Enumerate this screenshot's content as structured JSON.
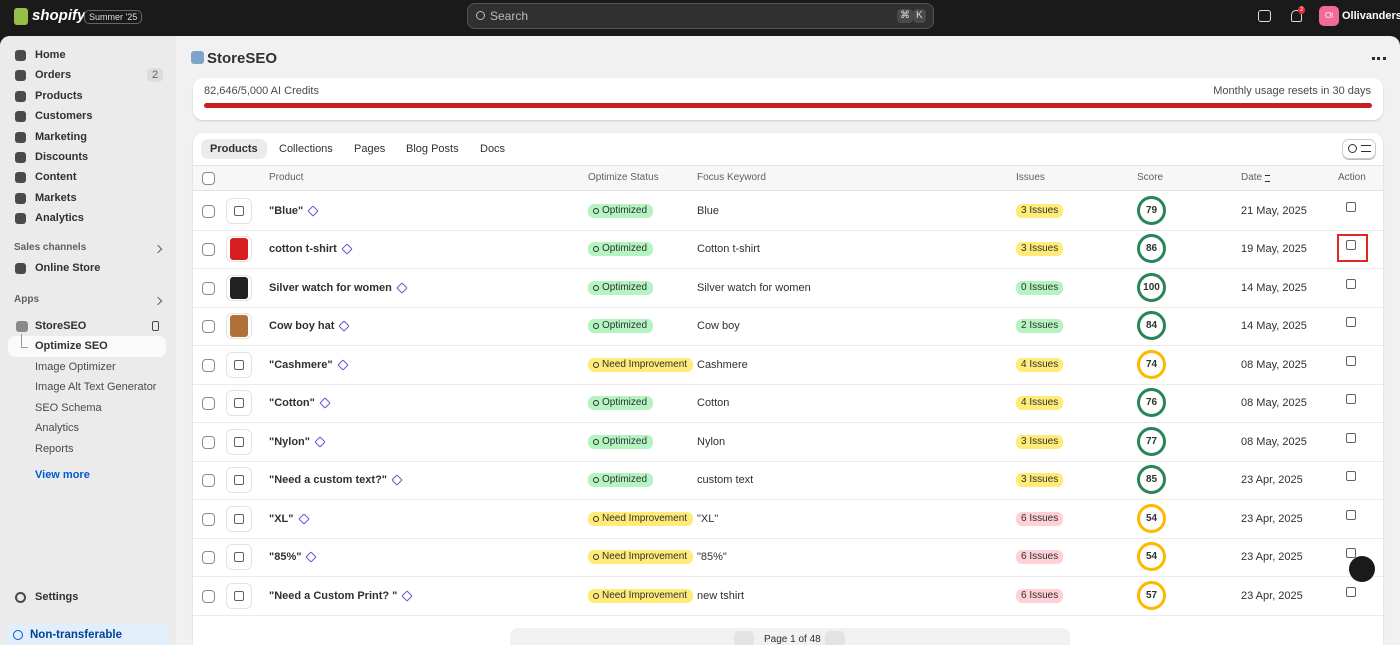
{
  "topbar": {
    "brand": "shopify",
    "edition": "Summer '25",
    "search": "Search",
    "shortcut": [
      "⌘",
      "K"
    ],
    "notifications": 2,
    "store_initials": "Ol",
    "store_name": "Ollivanders"
  },
  "sidebar": {
    "nav": [
      {
        "label": "Home"
      },
      {
        "label": "Orders",
        "badge": 2
      },
      {
        "label": "Products"
      },
      {
        "label": "Customers"
      },
      {
        "label": "Marketing"
      },
      {
        "label": "Discounts"
      },
      {
        "label": "Content"
      },
      {
        "label": "Markets"
      },
      {
        "label": "Analytics"
      }
    ],
    "sales_channels": {
      "title": "Sales channels",
      "items": [
        "Online Store"
      ]
    },
    "apps": {
      "title": "Apps"
    },
    "app": {
      "name": "StoreSEO",
      "items": [
        "Optimize SEO",
        "Image Optimizer",
        "Image Alt Text Generator",
        "SEO Schema",
        "Analytics",
        "Reports"
      ]
    },
    "view_more": "View more",
    "settings": "Settings",
    "footer": "Non-transferable"
  },
  "main": {
    "title": "StoreSEO",
    "credits": "82,646/5,000 AI Credits",
    "reset": "Monthly usage resets in 30 days",
    "tabs": [
      "Products",
      "Collections",
      "Pages",
      "Blog Posts",
      "Docs"
    ],
    "columns": [
      "Product",
      "Optimize Status",
      "Focus Keyword",
      "Issues",
      "Score",
      "Date",
      "Action"
    ],
    "rows": [
      {
        "product": "\"Blue\"",
        "image_color": null,
        "status": "Optimized",
        "status_color": "#b4f4c0",
        "keyword": "Blue",
        "issues": "3 Issues",
        "issues_color": "#ffeb78",
        "score": 79,
        "score_color": "#29845a",
        "date": "21 May, 2025"
      },
      {
        "product": "cotton t-shirt",
        "image_color": "#d81f1f",
        "status": "Optimized",
        "status_color": "#b4f4c0",
        "keyword": "Cotton t-shirt",
        "issues": "3 Issues",
        "issues_color": "#ffeb78",
        "score": 86,
        "score_color": "#29845a",
        "date": "19 May, 2025"
      },
      {
        "product": "Silver watch for women",
        "image_color": "#222222",
        "status": "Optimized",
        "status_color": "#b4f4c0",
        "keyword": "Silver watch for women",
        "issues": "0 Issues",
        "issues_color": "#b4f4c0",
        "score": 100,
        "score_color": "#29845a",
        "date": "14 May, 2025"
      },
      {
        "product": "Cow boy hat",
        "image_color": "#b0703a",
        "status": "Optimized",
        "status_color": "#b4f4c0",
        "keyword": "Cow boy",
        "issues": "2 Issues",
        "issues_color": "#b4f4c0",
        "score": 84,
        "score_color": "#29845a",
        "date": "14 May, 2025"
      },
      {
        "product": "\"Cashmere\"",
        "image_color": null,
        "status": "Need Improvement",
        "status_color": "#ffeb78",
        "keyword": "Cashmere",
        "issues": "4 Issues",
        "issues_color": "#ffeb78",
        "score": 74,
        "score_color": "#ffb800",
        "date": "08 May, 2025"
      },
      {
        "product": "\"Cotton\"",
        "image_color": null,
        "status": "Optimized",
        "status_color": "#b4f4c0",
        "keyword": "Cotton",
        "issues": "4 Issues",
        "issues_color": "#ffeb78",
        "score": 76,
        "score_color": "#29845a",
        "date": "08 May, 2025"
      },
      {
        "product": "\"Nylon\"",
        "image_color": null,
        "status": "Optimized",
        "status_color": "#b4f4c0",
        "keyword": "Nylon",
        "issues": "3 Issues",
        "issues_color": "#ffeb78",
        "score": 77,
        "score_color": "#29845a",
        "date": "08 May, 2025"
      },
      {
        "product": "\"Need a custom text?\"",
        "image_color": null,
        "status": "Optimized",
        "status_color": "#b4f4c0",
        "keyword": "custom text",
        "issues": "3 Issues",
        "issues_color": "#ffeb78",
        "score": 85,
        "score_color": "#29845a",
        "date": "23 Apr, 2025"
      },
      {
        "product": "\"XL\"",
        "image_color": null,
        "status": "Need Improvement",
        "status_color": "#ffeb78",
        "keyword": "\"XL\"",
        "issues": "6 Issues",
        "issues_color": "#fed1d7",
        "score": 54,
        "score_color": "#ffb800",
        "date": "23 Apr, 2025"
      },
      {
        "product": "\"85%\"",
        "image_color": null,
        "status": "Need Improvement",
        "status_color": "#ffeb78",
        "keyword": "\"85%\"",
        "issues": "6 Issues",
        "issues_color": "#fed1d7",
        "score": 54,
        "score_color": "#ffb800",
        "date": "23 Apr, 2025"
      },
      {
        "product": "\"Need a Custom Print? \"",
        "image_color": null,
        "status": "Need Improvement",
        "status_color": "#ffeb78",
        "keyword": "new tshirt",
        "issues": "6 Issues",
        "issues_color": "#fed1d7",
        "score": 57,
        "score_color": "#ffb800",
        "date": "23 Apr, 2025"
      }
    ],
    "pagination": "Page 1 of 48"
  }
}
